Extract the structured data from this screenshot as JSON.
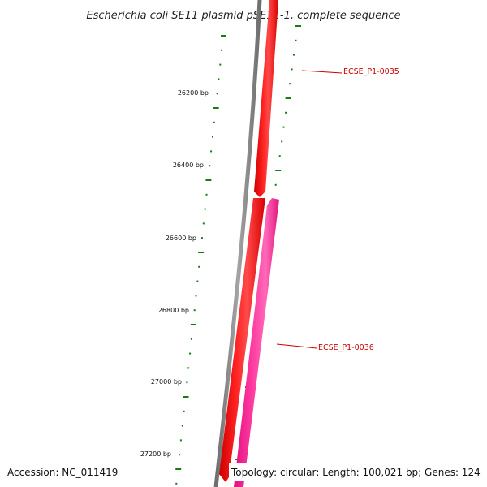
{
  "title": "Escherichia coli SE11 plasmid pSE11-1, complete sequence",
  "accession": "Accession: NC_011419",
  "summary": "Topology: circular; Length: 100,021 bp; Genes: 124",
  "colors": {
    "backbone": "#8a8a8a",
    "forward_gene": "#ff0000",
    "reverse_gene": "#ff1493",
    "gc_ticks": "#1a7a1a",
    "gene_label": "#cc0000"
  },
  "scale_labels": [
    {
      "text": "26200 bp"
    },
    {
      "text": "26400 bp"
    },
    {
      "text": "26600 bp"
    },
    {
      "text": "26800 bp"
    },
    {
      "text": "27000 bp"
    },
    {
      "text": "27200 bp"
    }
  ],
  "genes": [
    {
      "name": "ECSE_P1-0035",
      "strand": "forward"
    },
    {
      "name": "ECSE_P1-0036",
      "strand": "reverse"
    }
  ]
}
